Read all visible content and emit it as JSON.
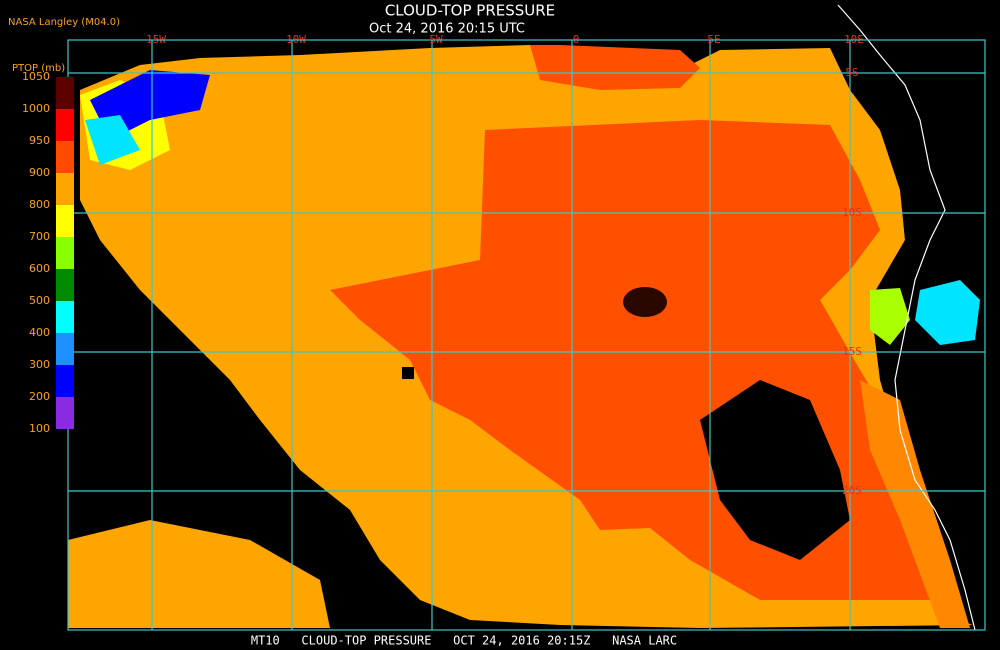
{
  "header": {
    "title": "CLOUD-TOP PRESSURE",
    "subtitle": "Oct 24, 2016 20:15 UTC",
    "source": "NASA Langley (M04.0)"
  },
  "colorbar": {
    "label": "PTOP (mb)",
    "ticks": [
      1050,
      1000,
      950,
      900,
      800,
      700,
      600,
      500,
      400,
      300,
      200,
      100
    ],
    "colors": [
      "#5c0000",
      "#ff0000",
      "#ff4a00",
      "#ffa500",
      "#ffff00",
      "#88ff00",
      "#008a00",
      "#00ffff",
      "#1e90ff",
      "#0000ff",
      "#8a2be2"
    ]
  },
  "grid": {
    "longitudes": [
      "15W",
      "10W",
      "5W",
      "0",
      "5E",
      "10E"
    ],
    "latitudes": [
      "5S",
      "10S",
      "15S",
      "20S"
    ]
  },
  "footer": {
    "text": "MT10   CLOUD-TOP PRESSURE   OCT 24, 2016 20:15Z   NASA LARC"
  }
}
